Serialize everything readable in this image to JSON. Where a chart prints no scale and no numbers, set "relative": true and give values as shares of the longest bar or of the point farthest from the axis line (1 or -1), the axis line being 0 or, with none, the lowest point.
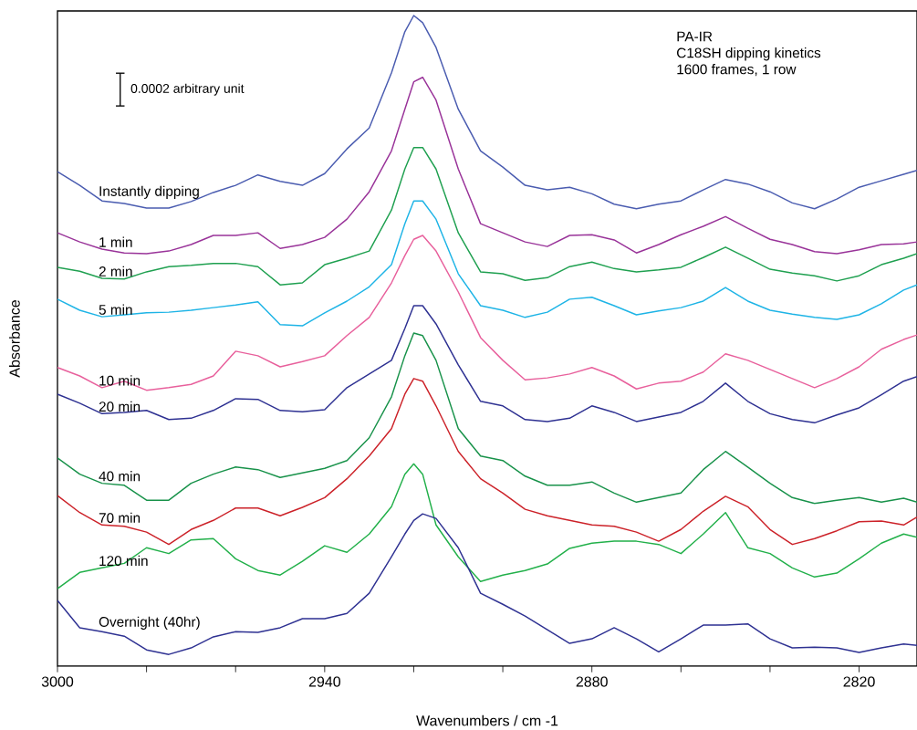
{
  "chart_data": {
    "type": "line",
    "relative": true,
    "xlabel": "Wavenumbers / cm -1",
    "ylabel": "Absorbance",
    "annotations": [
      "0.0002 arbitrary unit",
      "PA-IR",
      "C18SH dipping kinetics",
      "1600 frames, 1 row"
    ],
    "xlim": [
      3000,
      2807
    ],
    "xticks": [
      3000,
      {
        "value": 2980,
        "label": null
      },
      {
        "value": 2960,
        "label": null
      },
      2940,
      {
        "value": 2920,
        "label": null
      },
      {
        "value": 2900,
        "label": null
      },
      2880,
      {
        "value": 2860,
        "label": null
      },
      {
        "value": 2840,
        "label": null
      },
      2820
    ],
    "x": [
      3000,
      2995,
      2990,
      2985,
      2980,
      2975,
      2970,
      2965,
      2960,
      2955,
      2950,
      2945,
      2940,
      2935,
      2930,
      2925,
      2922,
      2920,
      2918,
      2915,
      2910,
      2905,
      2900,
      2895,
      2890,
      2885,
      2880,
      2875,
      2870,
      2865,
      2860,
      2855,
      2850,
      2845,
      2840,
      2835,
      2830,
      2825,
      2820,
      2815,
      2810,
      2807
    ],
    "legend": false,
    "grid": false,
    "marker": "none",
    "line_style": "solid",
    "series": [
      {
        "name": "Instantly dipping",
        "color": "#4a5cb0",
        "values": [
          0.76,
          0.739,
          0.715,
          0.711,
          0.704,
          0.704,
          0.714,
          0.728,
          0.739,
          0.755,
          0.745,
          0.739,
          0.757,
          0.795,
          0.827,
          0.912,
          0.975,
          1.0,
          0.989,
          0.951,
          0.856,
          0.792,
          0.767,
          0.739,
          0.732,
          0.736,
          0.726,
          0.71,
          0.703,
          0.71,
          0.715,
          0.732,
          0.748,
          0.741,
          0.729,
          0.712,
          0.703,
          0.718,
          0.736,
          0.746,
          0.756,
          0.762
        ]
      },
      {
        "name": "1 min",
        "color": "#993399",
        "values": [
          0.666,
          0.652,
          0.641,
          0.635,
          0.634,
          0.638,
          0.648,
          0.662,
          0.662,
          0.666,
          0.642,
          0.648,
          0.659,
          0.687,
          0.729,
          0.792,
          0.856,
          0.898,
          0.905,
          0.87,
          0.764,
          0.68,
          0.666,
          0.652,
          0.645,
          0.662,
          0.663,
          0.655,
          0.635,
          0.648,
          0.663,
          0.676,
          0.691,
          0.673,
          0.656,
          0.648,
          0.637,
          0.634,
          0.64,
          0.648,
          0.649,
          0.652
        ]
      },
      {
        "name": "2 min",
        "color": "#1fa050",
        "values": [
          0.613,
          0.607,
          0.596,
          0.595,
          0.606,
          0.614,
          0.616,
          0.619,
          0.619,
          0.614,
          0.586,
          0.589,
          0.617,
          0.627,
          0.638,
          0.701,
          0.764,
          0.797,
          0.797,
          0.764,
          0.666,
          0.606,
          0.603,
          0.593,
          0.597,
          0.614,
          0.621,
          0.611,
          0.606,
          0.609,
          0.613,
          0.628,
          0.644,
          0.627,
          0.61,
          0.604,
          0.6,
          0.592,
          0.6,
          0.617,
          0.627,
          0.634
        ]
      },
      {
        "name": "5 min",
        "color": "#1eb4e6",
        "values": [
          0.564,
          0.547,
          0.537,
          0.54,
          0.543,
          0.544,
          0.547,
          0.551,
          0.555,
          0.56,
          0.525,
          0.523,
          0.543,
          0.561,
          0.583,
          0.617,
          0.68,
          0.715,
          0.715,
          0.687,
          0.603,
          0.554,
          0.547,
          0.536,
          0.544,
          0.564,
          0.567,
          0.554,
          0.54,
          0.546,
          0.551,
          0.561,
          0.582,
          0.561,
          0.547,
          0.541,
          0.536,
          0.533,
          0.54,
          0.557,
          0.578,
          0.586
        ]
      },
      {
        "name": "10 min",
        "color": "#e8609c",
        "values": [
          0.459,
          0.446,
          0.428,
          0.438,
          0.424,
          0.428,
          0.433,
          0.446,
          0.484,
          0.477,
          0.46,
          0.468,
          0.477,
          0.508,
          0.536,
          0.589,
          0.631,
          0.656,
          0.662,
          0.638,
          0.575,
          0.505,
          0.47,
          0.44,
          0.443,
          0.449,
          0.459,
          0.446,
          0.426,
          0.435,
          0.438,
          0.452,
          0.48,
          0.47,
          0.456,
          0.442,
          0.428,
          0.442,
          0.46,
          0.487,
          0.502,
          0.509
        ]
      },
      {
        "name": "20 min",
        "color": "#2e3192",
        "values": [
          0.418,
          0.404,
          0.388,
          0.39,
          0.393,
          0.379,
          0.381,
          0.393,
          0.411,
          0.41,
          0.393,
          0.391,
          0.394,
          0.428,
          0.449,
          0.47,
          0.519,
          0.554,
          0.554,
          0.526,
          0.463,
          0.407,
          0.4,
          0.379,
          0.376,
          0.381,
          0.4,
          0.39,
          0.376,
          0.383,
          0.39,
          0.407,
          0.435,
          0.407,
          0.388,
          0.379,
          0.374,
          0.386,
          0.397,
          0.417,
          0.438,
          0.445
        ]
      },
      {
        "name": "40 min",
        "color": "#18924a",
        "values": [
          0.32,
          0.295,
          0.281,
          0.278,
          0.255,
          0.255,
          0.281,
          0.295,
          0.306,
          0.302,
          0.29,
          0.297,
          0.304,
          0.316,
          0.351,
          0.414,
          0.477,
          0.512,
          0.508,
          0.47,
          0.365,
          0.323,
          0.316,
          0.292,
          0.278,
          0.278,
          0.283,
          0.266,
          0.252,
          0.259,
          0.266,
          0.302,
          0.33,
          0.306,
          0.281,
          0.259,
          0.25,
          0.255,
          0.259,
          0.252,
          0.258,
          0.252
        ]
      },
      {
        "name": "70 min",
        "color": "#cc2229",
        "values": [
          0.262,
          0.236,
          0.217,
          0.215,
          0.206,
          0.187,
          0.21,
          0.224,
          0.243,
          0.243,
          0.231,
          0.244,
          0.259,
          0.288,
          0.323,
          0.365,
          0.418,
          0.442,
          0.438,
          0.4,
          0.33,
          0.288,
          0.266,
          0.241,
          0.231,
          0.224,
          0.217,
          0.215,
          0.206,
          0.192,
          0.21,
          0.238,
          0.261,
          0.245,
          0.21,
          0.187,
          0.196,
          0.208,
          0.222,
          0.223,
          0.217,
          0.229
        ]
      },
      {
        "name": "120 min",
        "color": "#22b04a",
        "values": [
          0.119,
          0.144,
          0.151,
          0.158,
          0.182,
          0.173,
          0.194,
          0.196,
          0.165,
          0.147,
          0.14,
          0.161,
          0.185,
          0.175,
          0.203,
          0.245,
          0.295,
          0.311,
          0.295,
          0.217,
          0.168,
          0.13,
          0.14,
          0.147,
          0.157,
          0.181,
          0.189,
          0.192,
          0.192,
          0.187,
          0.173,
          0.203,
          0.236,
          0.182,
          0.173,
          0.151,
          0.137,
          0.143,
          0.165,
          0.189,
          0.203,
          0.198
        ]
      },
      {
        "name": "Overnight (40hr)",
        "color": "#2e3192",
        "values": [
          0.101,
          0.059,
          0.053,
          0.046,
          0.025,
          0.018,
          0.028,
          0.045,
          0.053,
          0.052,
          0.059,
          0.073,
          0.073,
          0.081,
          0.112,
          0.168,
          0.203,
          0.224,
          0.234,
          0.227,
          0.182,
          0.112,
          0.095,
          0.077,
          0.056,
          0.035,
          0.042,
          0.059,
          0.042,
          0.022,
          0.042,
          0.063,
          0.063,
          0.065,
          0.042,
          0.028,
          0.029,
          0.028,
          0.021,
          0.028,
          0.034,
          0.032
        ]
      }
    ]
  }
}
